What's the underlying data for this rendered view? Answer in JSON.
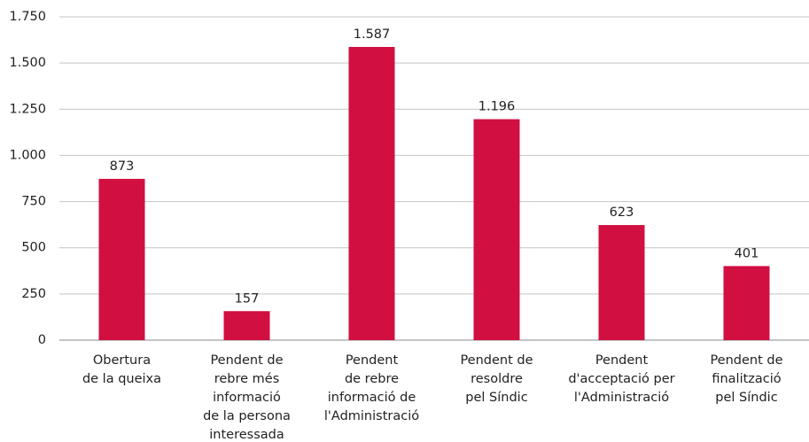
{
  "chart_data": {
    "type": "bar",
    "categories": [
      "Obertura\nde la queixa",
      "Pendent de\nrebre més\ninformació\nde la persona\ninteressada",
      "Pendent\nde rebre\ninformació de\nl'Administració",
      "Pendent de\nresoldre\npel Síndic",
      "Pendent\nd'acceptació per\nl'Administració",
      "Pendent de\nfinalització\npel Síndic"
    ],
    "values": [
      873,
      157,
      1587,
      1196,
      623,
      401
    ],
    "value_labels": [
      "873",
      "157",
      "1.587",
      "1.196",
      "623",
      "401"
    ],
    "color": "#d10f41",
    "ylim": [
      0,
      1750
    ],
    "yticks": [
      0,
      250,
      500,
      750,
      {
        "value": 1000,
        "label": "1.000"
      },
      {
        "value": 1250,
        "label": "1.250"
      },
      {
        "value": 1500,
        "label": "1.500"
      },
      {
        "value": 1750,
        "label": "1.750"
      }
    ],
    "grid": true
  }
}
